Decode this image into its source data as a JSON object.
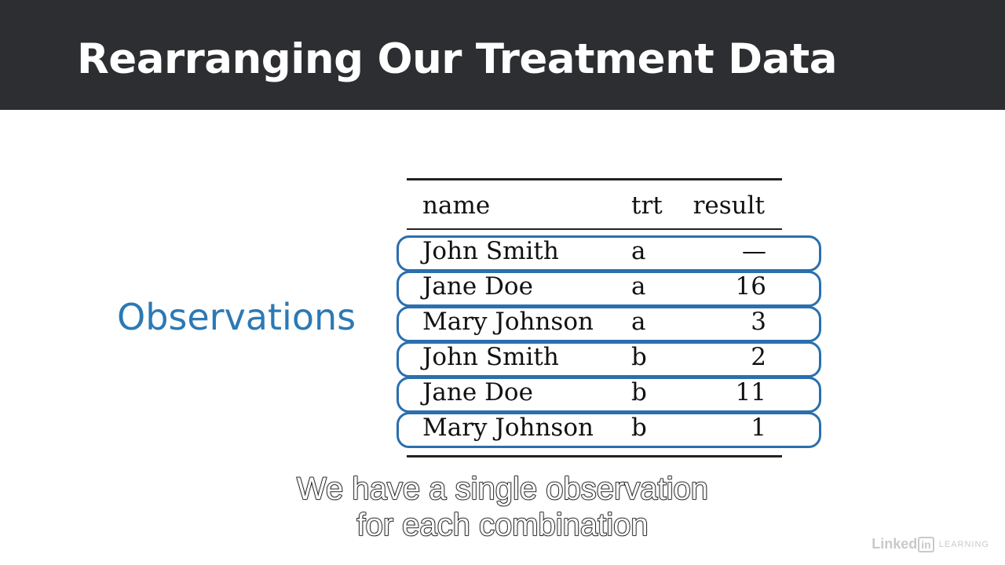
{
  "slide": {
    "title": "Rearranging Our Treatment Data",
    "side_label": "Observations"
  },
  "table": {
    "headers": [
      "name",
      "trt",
      "result"
    ],
    "rows": [
      {
        "name": "John Smith",
        "trt": "a",
        "result": "—"
      },
      {
        "name": "Jane Doe",
        "trt": "a",
        "result": "16"
      },
      {
        "name": "Mary Johnson",
        "trt": "a",
        "result": "3"
      },
      {
        "name": "John Smith",
        "trt": "b",
        "result": "2"
      },
      {
        "name": "Jane Doe",
        "trt": "b",
        "result": "11"
      },
      {
        "name": "Mary Johnson",
        "trt": "b",
        "result": "1"
      }
    ]
  },
  "captions": {
    "line1": "We have a single observation",
    "line2": "for each combination"
  },
  "logo": {
    "name": "Linked",
    "badge": "in",
    "product": "LEARNING"
  },
  "colors": {
    "title_bar": "#2d2e31",
    "accent_blue": "#2b79b5",
    "row_outline": "#2a6fae"
  }
}
